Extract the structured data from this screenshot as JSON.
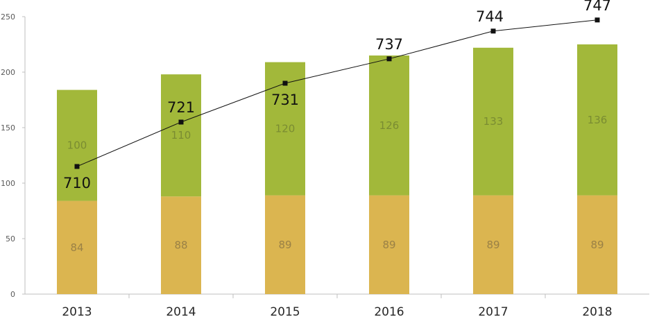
{
  "chart_data": {
    "type": "bar",
    "stacked": true,
    "categories": [
      "2013",
      "2014",
      "2015",
      "2016",
      "2017",
      "2018"
    ],
    "series": [
      {
        "values": [
          84,
          88,
          89,
          89,
          89,
          89
        ],
        "color": "#dbb550",
        "label_color": "#9a8146"
      },
      {
        "values": [
          100,
          110,
          120,
          126,
          133,
          136
        ],
        "color": "#a2b83a",
        "label_color": "#7a8c32"
      }
    ],
    "line_series": {
      "display_values": [
        710,
        721,
        731,
        737,
        744,
        747
      ],
      "plotted_values": [
        115,
        155,
        190,
        212,
        237,
        247
      ],
      "color": "#111111"
    },
    "yticks": [
      0,
      50,
      100,
      150,
      200,
      250
    ],
    "ylim": [
      0,
      250
    ],
    "grid": false,
    "title": "",
    "xlabel": "",
    "ylabel": ""
  }
}
